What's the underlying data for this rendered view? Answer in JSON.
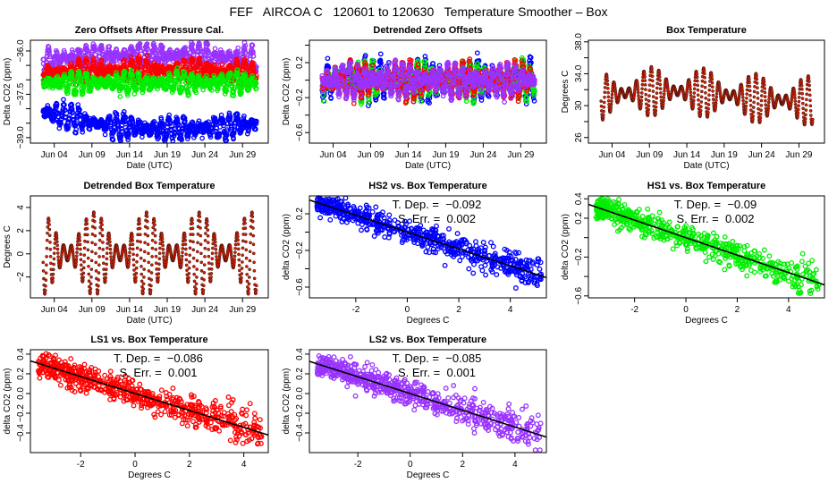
{
  "title": "FEF   AIRCOA C   120601 to 120630   Temperature Smoother – Box",
  "chart_data": [
    {
      "type": "scatter",
      "title": "Zero Offsets After Pressure Cal.",
      "xlabel": "Date (UTC)",
      "ylabel": "Delta CO2 (ppm)",
      "xlim": [
        "2012-05-31T20:00",
        "2012-07-02T10:00"
      ],
      "ylim": [
        -39.19,
        -35.63
      ],
      "x_ticks": [
        "Jun 04",
        "Jun 09",
        "Jun 14",
        "Jun 19",
        "Jun 24",
        "Jun 29"
      ],
      "y_ticks": [
        -36.0,
        -37.5,
        -39.0
      ],
      "y_minor_step": 0.5,
      "series": [
        {
          "color": "#9933ff",
          "level": -36.3,
          "amp": 0.35,
          "trend": 0.15
        },
        {
          "color": "#ff0000",
          "level": -36.75,
          "amp": 0.3,
          "trend": 0.1
        },
        {
          "color": "#00ee00",
          "level": -37.1,
          "amp": 0.3,
          "trend": 0.0
        },
        {
          "color": "#0000ff",
          "level": -38.1,
          "amp": 0.35,
          "trend": -0.4
        }
      ]
    },
    {
      "type": "scatter",
      "title": "Detrended Zero Offsets",
      "xlabel": "Date (UTC)",
      "ylabel": "Delta CO2 (ppm)",
      "xlim": [
        "2012-05-31T20:00",
        "2012-07-02T10:00"
      ],
      "ylim": [
        -0.72,
        0.456
      ],
      "x_ticks": [
        "Jun 04",
        "Jun 09",
        "Jun 14",
        "Jun 19",
        "Jun 24",
        "Jun 29"
      ],
      "y_ticks": [
        0.2,
        -0.2,
        -0.6
      ],
      "y_minor_step": 0.2,
      "series": [
        {
          "color": "#0000ff",
          "level": 0.0,
          "amp": 0.18,
          "trend": 0
        },
        {
          "color": "#00ee00",
          "level": 0.0,
          "amp": 0.17,
          "trend": 0
        },
        {
          "color": "#ff0000",
          "level": 0.0,
          "amp": 0.16,
          "trend": 0
        },
        {
          "color": "#9933ff",
          "level": 0.0,
          "amp": 0.15,
          "trend": 0
        }
      ]
    },
    {
      "type": "scatter",
      "title": "Box Temperature",
      "xlabel": "Date (UTC)",
      "ylabel": "Degrees C",
      "xlim": [
        "2012-05-31T20:00",
        "2012-07-02T10:00"
      ],
      "ylim": [
        25.3,
        38.2
      ],
      "x_ticks": [
        "Jun 04",
        "Jun 09",
        "Jun 14",
        "Jun 19",
        "Jun 24",
        "Jun 29"
      ],
      "y_ticks": [
        26,
        30,
        34,
        38
      ],
      "y_minor_step": 2,
      "series": [
        {
          "color": "#cc2200",
          "level": 31.2,
          "amp": 2.6,
          "trend": 0.6
        }
      ]
    },
    {
      "type": "scatter",
      "title": "Detrended Box Temperature",
      "xlabel": "Date (UTC)",
      "ylabel": "Degrees C",
      "xlim": [
        "2012-05-31T20:00",
        "2012-07-02T10:00"
      ],
      "ylim": [
        -3.8,
        5.0
      ],
      "x_ticks": [
        "Jun 04",
        "Jun 09",
        "Jun 14",
        "Jun 19",
        "Jun 24",
        "Jun 29"
      ],
      "y_ticks": [
        -2,
        0,
        2,
        4
      ],
      "y_minor_step": 2,
      "series": [
        {
          "color": "#cc2200",
          "level": 0.0,
          "amp": 3.0,
          "trend": 0
        }
      ]
    },
    {
      "type": "scatter",
      "title": "HS2 vs. Box Temperature",
      "xlabel": "Degrees C",
      "ylabel": "delta CO2 (ppm)",
      "xlim": [
        -3.8,
        5.4
      ],
      "ylim": [
        -0.717,
        0.395
      ],
      "x_ticks": [
        -2,
        0,
        2,
        4
      ],
      "y_ticks": [
        0.2,
        -0.2,
        -0.6
      ],
      "y_minor_step": 0.2,
      "color": "#0000ff",
      "fit": {
        "slope": -0.092,
        "intercept": 0.0
      },
      "annotation": [
        "T. Dep. =  −0.092",
        "S. Err. =  0.002"
      ]
    },
    {
      "type": "scatter",
      "title": "HS1 vs. Box Temperature",
      "xlabel": "Degrees C",
      "ylabel": "delta CO2 (ppm)",
      "xlim": [
        -3.8,
        5.4
      ],
      "ylim": [
        -0.62,
        0.43
      ],
      "x_ticks": [
        -2,
        0,
        2,
        4
      ],
      "y_ticks": [
        0.4,
        0.2,
        -0.2,
        -0.6
      ],
      "y_minor_step": 0.2,
      "color": "#00ee00",
      "fit": {
        "slope": -0.09,
        "intercept": 0.0
      },
      "annotation": [
        "T. Dep. =  −0.09",
        "S. Err. =  0.002"
      ]
    },
    {
      "type": "scatter",
      "title": "LS1 vs. Box Temperature",
      "xlabel": "Degrees C",
      "ylabel": "delta CO2 (ppm)",
      "xlim": [
        -3.85,
        4.9
      ],
      "ylim": [
        -0.6,
        0.445
      ],
      "x_ticks": [
        -2,
        0,
        2,
        4
      ],
      "y_ticks": [
        0.4,
        0.2,
        0.0,
        -0.2,
        -0.4
      ],
      "y_minor_step": 0.2,
      "color": "#ff0000",
      "fit": {
        "slope": -0.086,
        "intercept": 0.0
      },
      "annotation": [
        "T. Dep. =  −0.086",
        "S. Err. =  0.001"
      ]
    },
    {
      "type": "scatter",
      "title": "LS2 vs. Box Temperature",
      "xlabel": "Degrees C",
      "ylabel": "delta CO2 (ppm)",
      "xlim": [
        -3.85,
        5.2
      ],
      "ylim": [
        -0.6,
        0.445
      ],
      "x_ticks": [
        -2,
        0,
        2,
        4
      ],
      "y_ticks": [
        0.4,
        0.2,
        0.0,
        -0.2,
        -0.4
      ],
      "y_minor_step": 0.2,
      "color": "#9933ff",
      "fit": {
        "slope": -0.085,
        "intercept": 0.0
      },
      "annotation": [
        "T. Dep. =  −0.085",
        "S. Err. =  0.001"
      ]
    }
  ]
}
